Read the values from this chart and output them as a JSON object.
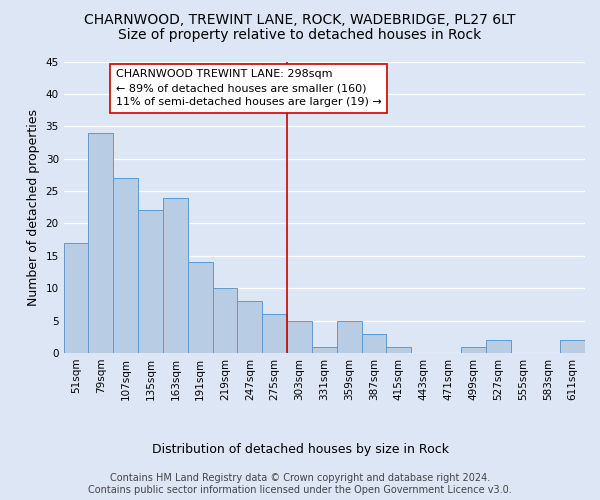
{
  "title1": "CHARNWOOD, TREWINT LANE, ROCK, WADEBRIDGE, PL27 6LT",
  "title2": "Size of property relative to detached houses in Rock",
  "xlabel": "Distribution of detached houses by size in Rock",
  "ylabel": "Number of detached properties",
  "categories": [
    "51sqm",
    "79sqm",
    "107sqm",
    "135sqm",
    "163sqm",
    "191sqm",
    "219sqm",
    "247sqm",
    "275sqm",
    "303sqm",
    "331sqm",
    "359sqm",
    "387sqm",
    "415sqm",
    "443sqm",
    "471sqm",
    "499sqm",
    "527sqm",
    "555sqm",
    "583sqm",
    "611sqm"
  ],
  "values": [
    17,
    34,
    27,
    22,
    24,
    14,
    10,
    8,
    6,
    5,
    1,
    5,
    3,
    1,
    0,
    0,
    1,
    2,
    0,
    0,
    2
  ],
  "bar_color": "#b8cce4",
  "bar_edge_color": "#5b9bd5",
  "background_color": "#dce6f5",
  "grid_color": "#ffffff",
  "vline_x": 8.5,
  "vline_color": "#cc0000",
  "annotation_line1": "CHARNWOOD TREWINT LANE: 298sqm",
  "annotation_line2": "← 89% of detached houses are smaller (160)",
  "annotation_line3": "11% of semi-detached houses are larger (19) →",
  "annotation_box_color": "#ffffff",
  "annotation_box_edge": "#cc0000",
  "ylim": [
    0,
    45
  ],
  "yticks": [
    0,
    5,
    10,
    15,
    20,
    25,
    30,
    35,
    40,
    45
  ],
  "footnote": "Contains HM Land Registry data © Crown copyright and database right 2024.\nContains public sector information licensed under the Open Government Licence v3.0.",
  "title1_fontsize": 10,
  "title2_fontsize": 10,
  "ylabel_fontsize": 9,
  "xlabel_fontsize": 9,
  "tick_fontsize": 7.5,
  "annotation_fontsize": 8,
  "footnote_fontsize": 7
}
